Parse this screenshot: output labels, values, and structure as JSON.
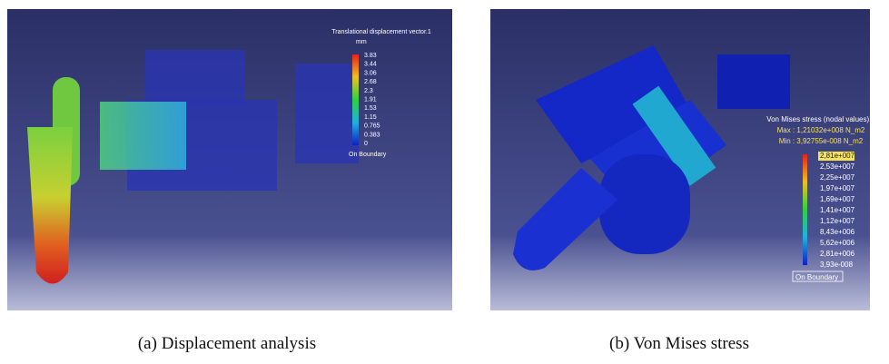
{
  "panel_a": {
    "legend_title": "Translational displacement vector.1",
    "unit": "mm",
    "legend_values": [
      "3.83",
      "3.44",
      "3.06",
      "2.68",
      "2.3",
      "1.91",
      "1.53",
      "1.15",
      "0.765",
      "0.383",
      "0"
    ],
    "boundary": "On Boundary",
    "caption": "(a) Displacement analysis"
  },
  "panel_b": {
    "legend_title": "Von Mises stress (nodal values).1",
    "max": "Max : 1,21032e+008 N_m2",
    "min": "Min : 3,92755e-008 N_m2",
    "legend_values": [
      "2,81e+007",
      "2,53e+007",
      "2,25e+007",
      "1,97e+007",
      "1,69e+007",
      "1,41e+007",
      "1,12e+007",
      "8,43e+006",
      "5,62e+006",
      "2,81e+006",
      "3,93e-008"
    ],
    "boundary": "On Boundary",
    "caption": "(b) Von Mises stress"
  }
}
